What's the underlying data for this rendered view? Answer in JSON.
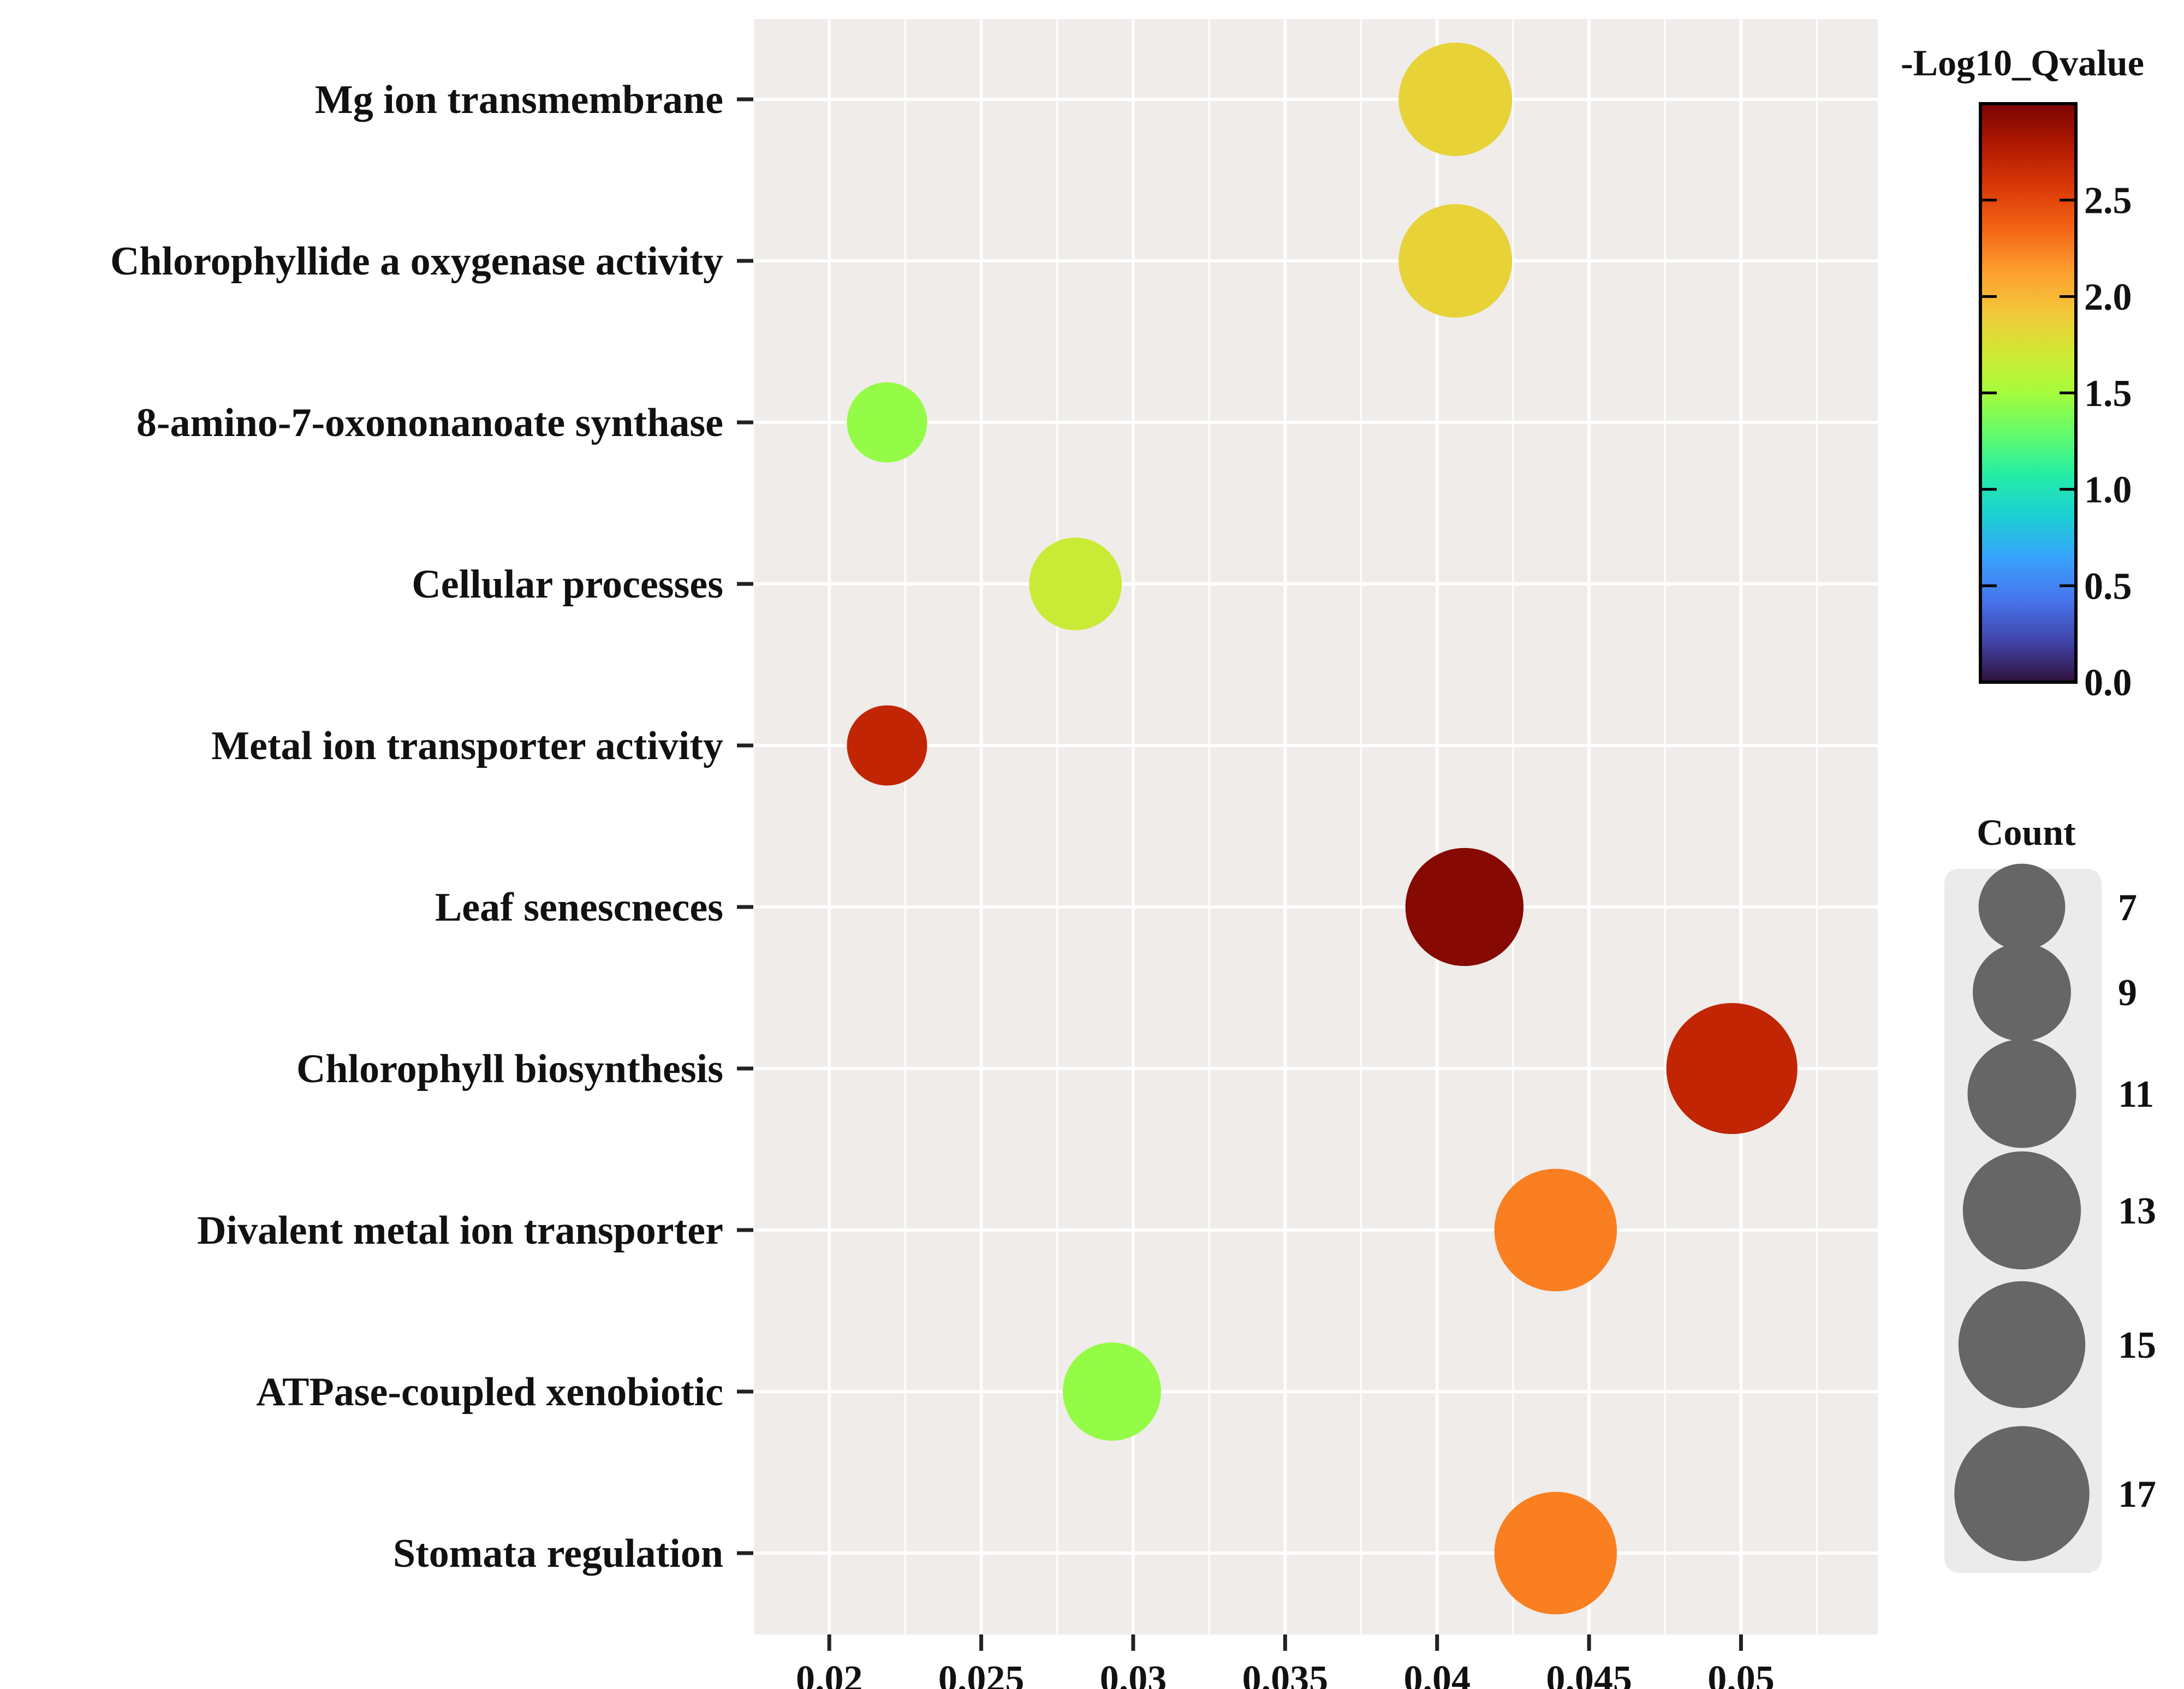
{
  "chart_data": {
    "type": "scatter",
    "title": "",
    "xlabel": "",
    "ylabel": "",
    "xlim": [
      0.0175,
      0.0545
    ],
    "x_ticks": [
      0.02,
      0.025,
      0.03,
      0.035,
      0.04,
      0.045,
      0.05
    ],
    "x_tick_labels": [
      "0.02",
      "0.025",
      "0.03",
      "0.035",
      "0.04",
      "0.045",
      "0.05"
    ],
    "grid": true,
    "categories": [
      "Mg ion transmembrane",
      "Chlorophyllide a oxygenase activity",
      "8-amino-7-oxononanoate synthase",
      "Cellular processes",
      "Metal ion transporter activity",
      "Leaf senescneces",
      "Chlorophyll biosynthesis",
      "Divalent metal ion transporter",
      "ATPase-coupled xenobiotic",
      "Stomata regulation"
    ],
    "points": [
      {
        "category": "Mg ion transmembrane",
        "x": 0.0406,
        "count": 12,
        "neg_log10_qvalue": 1.85
      },
      {
        "category": "Chlorophyllide a oxygenase activity",
        "x": 0.0406,
        "count": 12,
        "neg_log10_qvalue": 1.85
      },
      {
        "category": "8-amino-7-oxononanoate synthase",
        "x": 0.0219,
        "count": 6,
        "neg_log10_qvalue": 1.45
      },
      {
        "category": "Cellular processes",
        "x": 0.0281,
        "count": 8,
        "neg_log10_qvalue": 1.68
      },
      {
        "category": "Metal ion transporter activity",
        "x": 0.0219,
        "count": 6,
        "neg_log10_qvalue": 2.7
      },
      {
        "category": "Leaf senescneces",
        "x": 0.0409,
        "count": 13,
        "neg_log10_qvalue": 2.95
      },
      {
        "category": "Chlorophyll biosynthesis",
        "x": 0.0497,
        "count": 16,
        "neg_log10_qvalue": 2.7
      },
      {
        "category": "Divalent metal ion transporter",
        "x": 0.0439,
        "count": 14,
        "neg_log10_qvalue": 2.25
      },
      {
        "category": "ATPase-coupled xenobiotic",
        "x": 0.0293,
        "count": 9,
        "neg_log10_qvalue": 1.45
      },
      {
        "category": "Stomata regulation",
        "x": 0.0439,
        "count": 14,
        "neg_log10_qvalue": 2.25
      }
    ],
    "color_legend": {
      "title": "-Log10_Qvalue",
      "range": [
        0.0,
        3.0
      ],
      "ticks": [
        0.0,
        0.5,
        1.0,
        1.5,
        2.0,
        2.5
      ],
      "tick_labels": [
        "0.0",
        "0.5",
        "1.0",
        "1.5",
        "2.0",
        "2.5"
      ],
      "colormap": [
        "#30123b",
        "#4145ab",
        "#4675ed",
        "#39a2fc",
        "#1bcfd4",
        "#24eca6",
        "#61fc6c",
        "#a4fc3b",
        "#d1e834",
        "#f3c63a",
        "#fe9b2d",
        "#f36315",
        "#d93807",
        "#b11901",
        "#7a0403"
      ]
    },
    "size_legend": {
      "title": "Count",
      "values": [
        7,
        9,
        11,
        13,
        15,
        17
      ],
      "labels": [
        "7",
        "9",
        "11",
        "13",
        "15",
        "17"
      ],
      "color": "#666666"
    },
    "panel_background": "#efecea",
    "grid_color": "#ffffff"
  }
}
